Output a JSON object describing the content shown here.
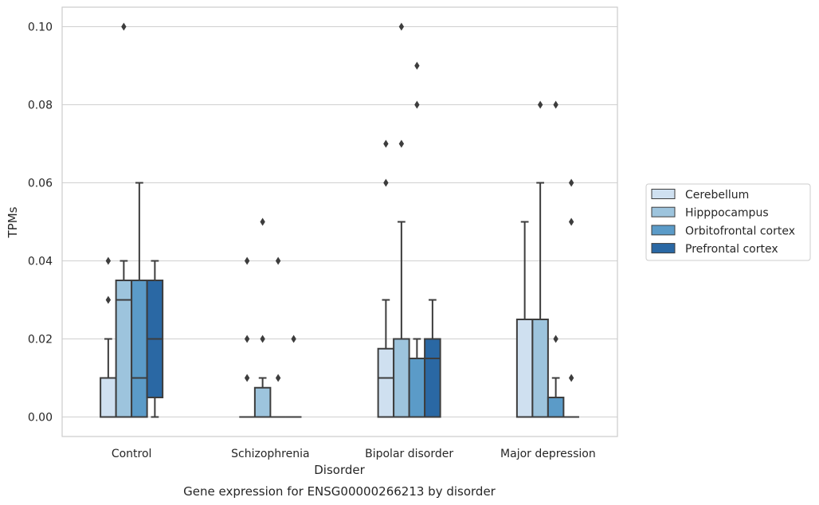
{
  "chart_data": {
    "type": "box",
    "title": "",
    "caption": "Gene expression for ENSG00000266213 by disorder",
    "xlabel": "Disorder",
    "ylabel": "TPMs",
    "ylim": [
      -0.005,
      0.105
    ],
    "yticks": [
      0.0,
      0.02,
      0.04,
      0.06,
      0.08,
      0.1
    ],
    "ytick_labels": [
      "0.00",
      "0.02",
      "0.04",
      "0.06",
      "0.08",
      "0.10"
    ],
    "grid": true,
    "legend_position": "right",
    "categories": [
      "Control",
      "Schizophrenia",
      "Bipolar disorder",
      "Major depression"
    ],
    "series": [
      {
        "name": "Cerebellum",
        "color": "#cfe0f0",
        "boxes": [
          {
            "q1": 0.0,
            "median": 0.0,
            "q3": 0.01,
            "whislo": 0.0,
            "whishi": 0.02,
            "fliers": [
              0.03,
              0.04
            ]
          },
          {
            "q1": 0.0,
            "median": 0.0,
            "q3": 0.0,
            "whislo": 0.0,
            "whishi": 0.0,
            "fliers": [
              0.01,
              0.02,
              0.04
            ]
          },
          {
            "q1": 0.0,
            "median": 0.01,
            "q3": 0.0175,
            "whislo": 0.0,
            "whishi": 0.03,
            "fliers": [
              0.06,
              0.07
            ]
          },
          {
            "q1": 0.0,
            "median": 0.0,
            "q3": 0.025,
            "whislo": 0.0,
            "whishi": 0.05,
            "fliers": []
          }
        ]
      },
      {
        "name": "Hipppocampus",
        "color": "#9dc4dd",
        "boxes": [
          {
            "q1": 0.0,
            "median": 0.03,
            "q3": 0.035,
            "whislo": 0.0,
            "whishi": 0.04,
            "fliers": [
              0.1
            ]
          },
          {
            "q1": 0.0,
            "median": 0.0,
            "q3": 0.0075,
            "whislo": 0.0,
            "whishi": 0.01,
            "fliers": [
              0.02,
              0.05
            ]
          },
          {
            "q1": 0.0,
            "median": 0.0,
            "q3": 0.02,
            "whislo": 0.0,
            "whishi": 0.05,
            "fliers": [
              0.07,
              0.1
            ]
          },
          {
            "q1": 0.0,
            "median": 0.0,
            "q3": 0.025,
            "whislo": 0.0,
            "whishi": 0.06,
            "fliers": [
              0.08
            ]
          }
        ]
      },
      {
        "name": "Orbitofrontal cortex",
        "color": "#5b9bc8",
        "boxes": [
          {
            "q1": 0.0,
            "median": 0.01,
            "q3": 0.035,
            "whislo": 0.0,
            "whishi": 0.06,
            "fliers": []
          },
          {
            "q1": 0.0,
            "median": 0.0,
            "q3": 0.0,
            "whislo": 0.0,
            "whishi": 0.0,
            "fliers": [
              0.01,
              0.04
            ]
          },
          {
            "q1": 0.0,
            "median": 0.0,
            "q3": 0.015,
            "whislo": 0.0,
            "whishi": 0.02,
            "fliers": [
              0.08,
              0.09
            ]
          },
          {
            "q1": 0.0,
            "median": 0.0,
            "q3": 0.005,
            "whislo": 0.0,
            "whishi": 0.01,
            "fliers": [
              0.02,
              0.08
            ]
          }
        ]
      },
      {
        "name": "Prefrontal cortex",
        "color": "#2a68a4",
        "boxes": [
          {
            "q1": 0.005,
            "median": 0.02,
            "q3": 0.035,
            "whislo": 0.0,
            "whishi": 0.04,
            "fliers": []
          },
          {
            "q1": 0.0,
            "median": 0.0,
            "q3": 0.0,
            "whislo": 0.0,
            "whishi": 0.0,
            "fliers": [
              0.02
            ]
          },
          {
            "q1": 0.0,
            "median": 0.015,
            "q3": 0.02,
            "whislo": 0.0,
            "whishi": 0.03,
            "fliers": []
          },
          {
            "q1": 0.0,
            "median": 0.0,
            "q3": 0.0,
            "whislo": 0.0,
            "whishi": 0.0,
            "fliers": [
              0.01,
              0.05,
              0.06
            ]
          }
        ]
      }
    ]
  }
}
